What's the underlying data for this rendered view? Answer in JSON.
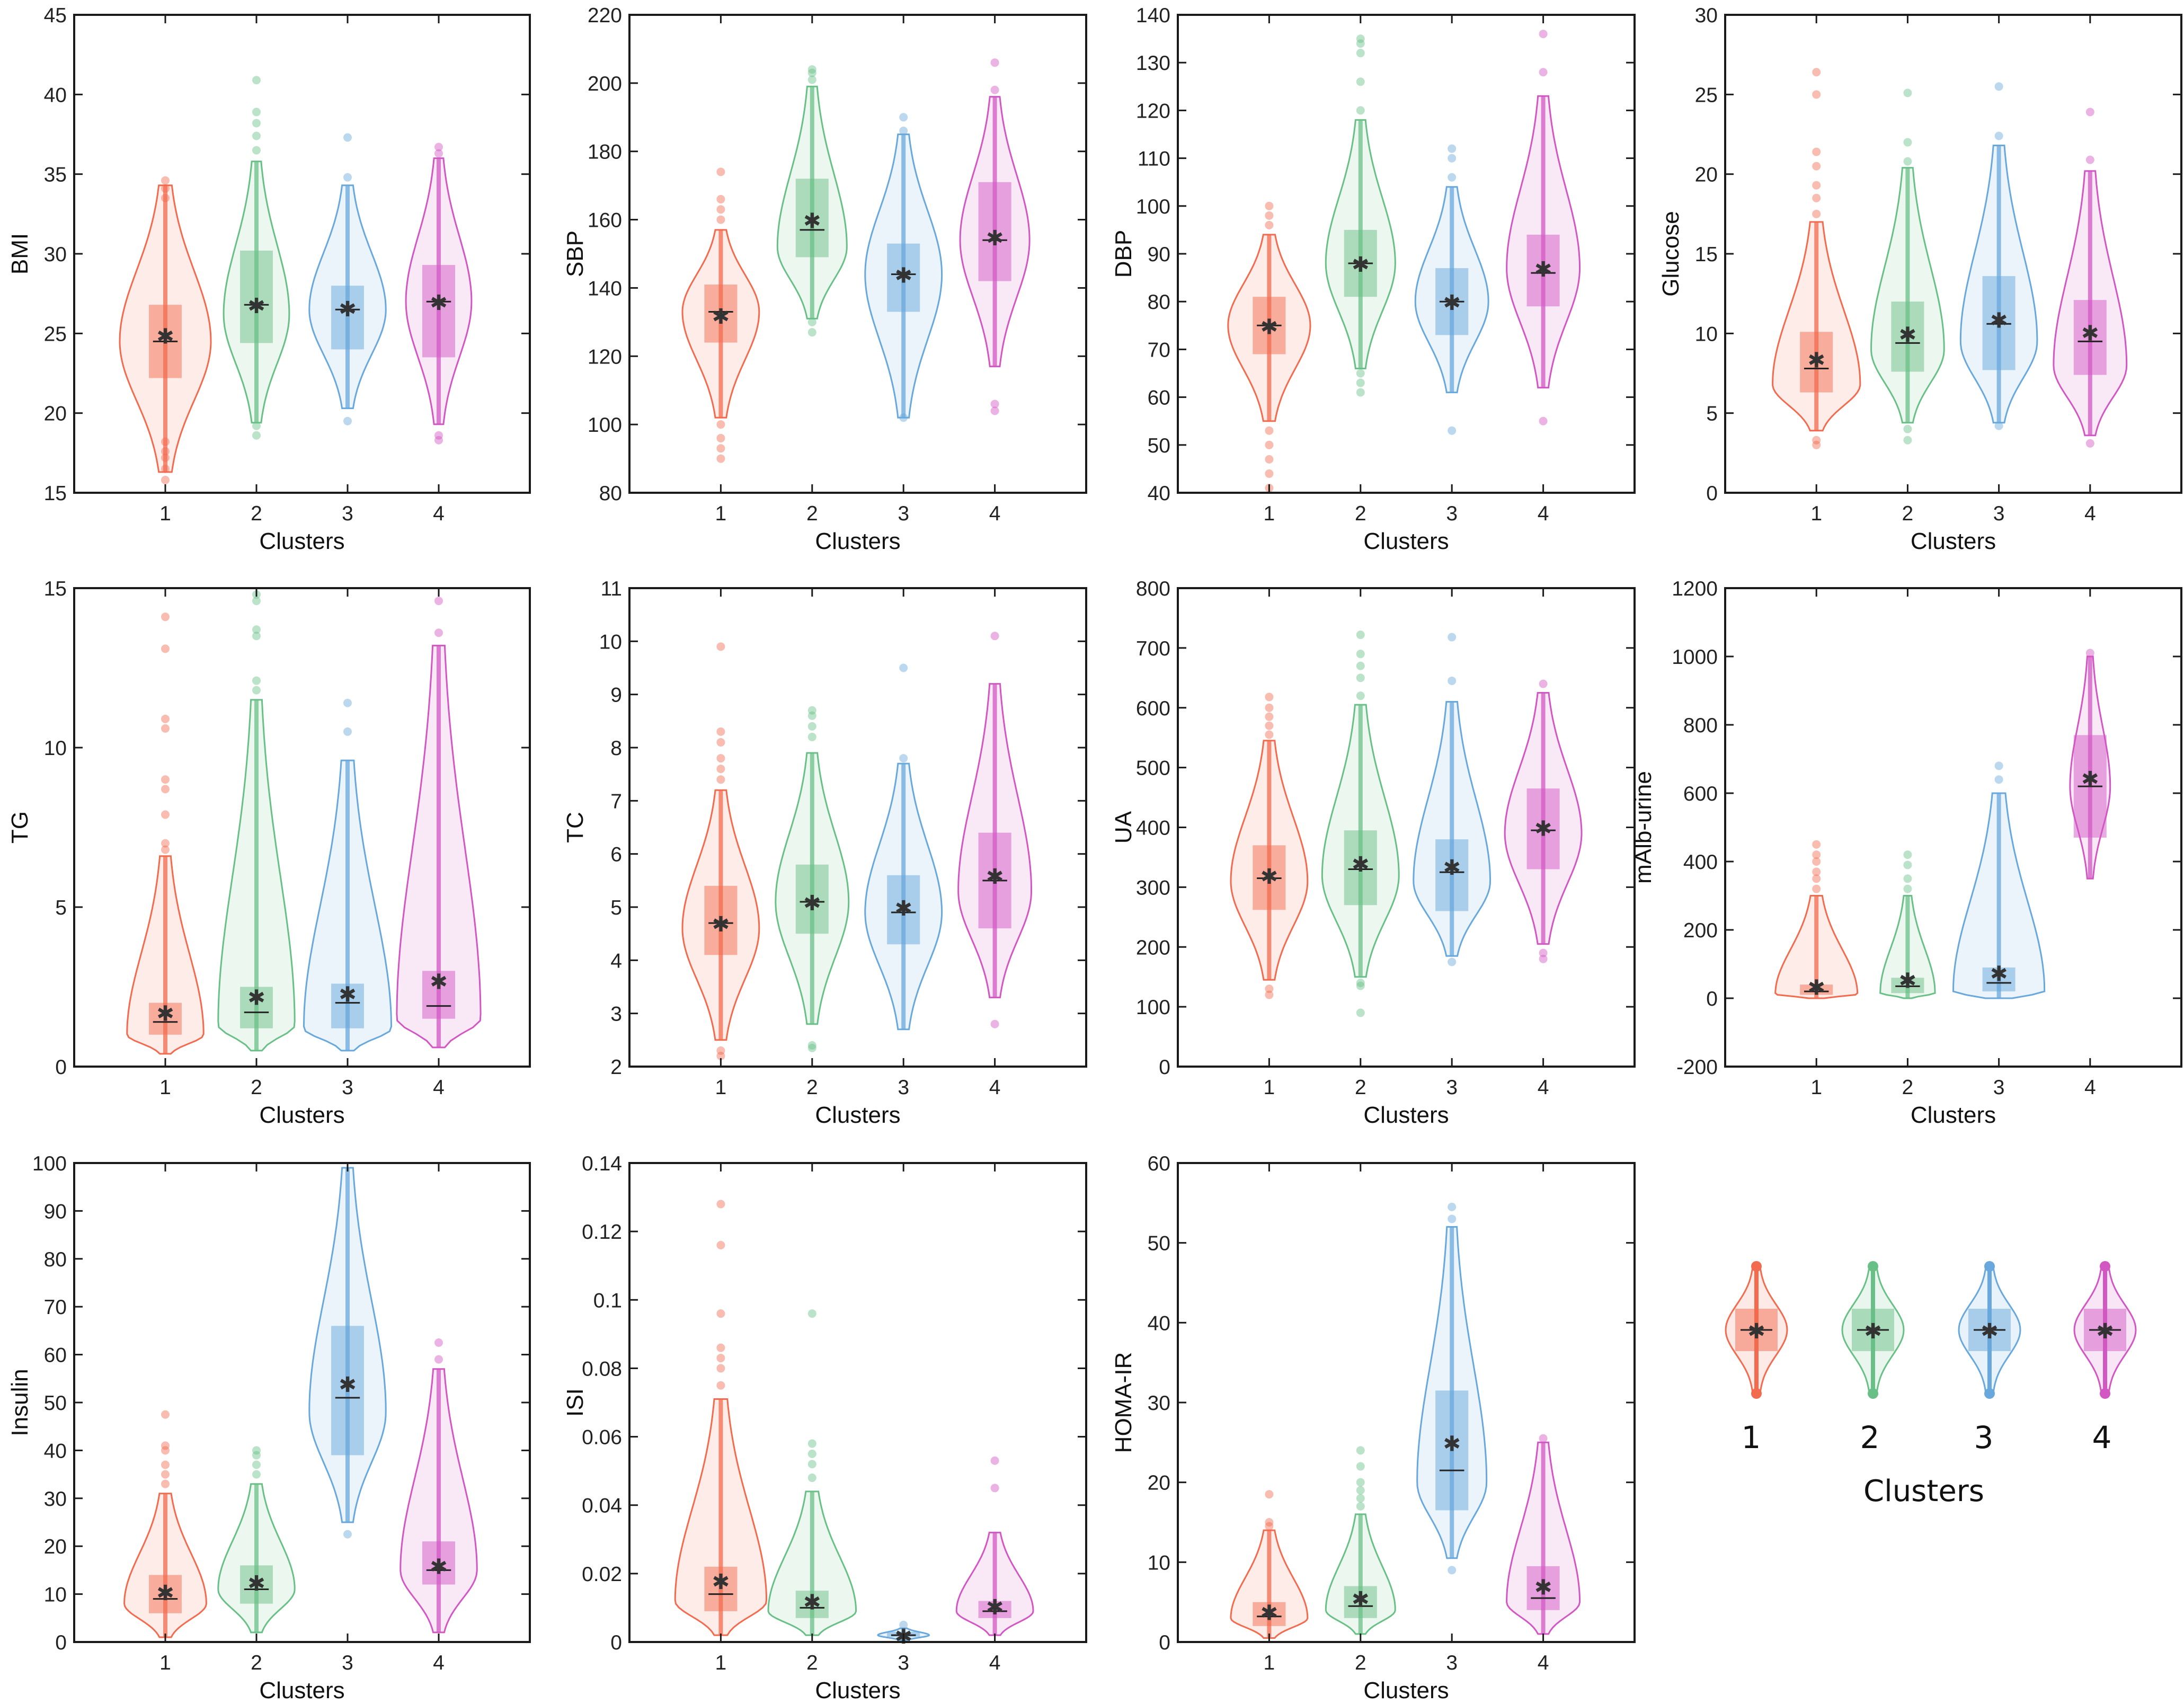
{
  "colors": {
    "1": "#F26B4F",
    "2": "#69C087",
    "3": "#68A8DC",
    "4": "#D257C3"
  },
  "legend": {
    "labels": [
      "1",
      "2",
      "3",
      "4"
    ],
    "title": "Clusters"
  },
  "chart_data": [
    {
      "type": "violin",
      "ylabel": "BMI",
      "xlabel": "Clusters",
      "categories": [
        "1",
        "2",
        "3",
        "4"
      ],
      "ylim": [
        15,
        45
      ],
      "yticks": [
        15,
        20,
        25,
        30,
        35,
        40,
        45
      ],
      "groups": [
        {
          "min": 16.3,
          "q1": 22.2,
          "median": 24.5,
          "q3": 26.8,
          "max": 34.3,
          "mean": 24.9,
          "mode": 24.5,
          "w": 0.5,
          "out": [
            15.8,
            16.5,
            17.2,
            17.6,
            18.2,
            33.5,
            34.1,
            34.6
          ]
        },
        {
          "min": 19.4,
          "q1": 24.4,
          "median": 26.8,
          "q3": 30.2,
          "max": 35.8,
          "mean": 26.8,
          "mode": 26.2,
          "w": 0.36,
          "out": [
            18.6,
            19.2,
            36.5,
            37.4,
            38.2,
            38.9,
            40.9
          ]
        },
        {
          "min": 20.3,
          "q1": 24.0,
          "median": 26.5,
          "q3": 28.0,
          "max": 34.3,
          "mean": 26.6,
          "mode": 26.5,
          "w": 0.42,
          "out": [
            19.5,
            34.8,
            37.3
          ]
        },
        {
          "min": 19.3,
          "q1": 23.5,
          "median": 27.0,
          "q3": 29.3,
          "max": 36.0,
          "mean": 27.0,
          "mode": 27.0,
          "w": 0.36,
          "out": [
            18.3,
            18.6,
            36.3,
            36.7
          ]
        }
      ]
    },
    {
      "type": "violin",
      "ylabel": "SBP",
      "xlabel": "Clusters",
      "categories": [
        "1",
        "2",
        "3",
        "4"
      ],
      "ylim": [
        80,
        220
      ],
      "yticks": [
        80,
        100,
        120,
        140,
        160,
        180,
        200,
        220
      ],
      "groups": [
        {
          "min": 102,
          "q1": 124,
          "median": 133,
          "q3": 141,
          "max": 157,
          "mean": 132,
          "mode": 133,
          "w": 0.42,
          "out": [
            90,
            93,
            96,
            100,
            160,
            163,
            166,
            174
          ]
        },
        {
          "min": 131,
          "q1": 149,
          "median": 157,
          "q3": 172,
          "max": 199,
          "mean": 160,
          "mode": 152,
          "w": 0.38,
          "out": [
            127,
            130,
            201,
            203,
            204
          ]
        },
        {
          "min": 102,
          "q1": 133,
          "median": 144,
          "q3": 153,
          "max": 185,
          "mean": 144,
          "mode": 144,
          "w": 0.42,
          "out": [
            102,
            186,
            190
          ]
        },
        {
          "min": 117,
          "q1": 142,
          "median": 154,
          "q3": 171,
          "max": 196,
          "mean": 155,
          "mode": 154,
          "w": 0.38,
          "out": [
            104,
            106,
            198,
            206
          ]
        }
      ]
    },
    {
      "type": "violin",
      "ylabel": "DBP",
      "xlabel": "Clusters",
      "categories": [
        "1",
        "2",
        "3",
        "4"
      ],
      "ylim": [
        40,
        140
      ],
      "yticks": [
        40,
        50,
        60,
        70,
        80,
        90,
        100,
        110,
        120,
        130,
        140
      ],
      "groups": [
        {
          "min": 55,
          "q1": 69,
          "median": 75,
          "q3": 81,
          "max": 94,
          "mean": 75,
          "mode": 75,
          "w": 0.45,
          "out": [
            41,
            44,
            47,
            50,
            53,
            96,
            98,
            100
          ]
        },
        {
          "min": 66,
          "q1": 81,
          "median": 88,
          "q3": 95,
          "max": 118,
          "mean": 88,
          "mode": 88,
          "w": 0.38,
          "out": [
            61,
            63,
            65,
            120,
            126,
            132,
            134,
            135
          ]
        },
        {
          "min": 61,
          "q1": 73,
          "median": 80,
          "q3": 87,
          "max": 104,
          "mean": 80,
          "mode": 80,
          "w": 0.4,
          "out": [
            53,
            106,
            110,
            112
          ]
        },
        {
          "min": 62,
          "q1": 79,
          "median": 86,
          "q3": 94,
          "max": 123,
          "mean": 87,
          "mode": 87,
          "w": 0.4,
          "out": [
            55,
            128,
            136
          ]
        }
      ]
    },
    {
      "type": "violin",
      "ylabel": "Glucose",
      "xlabel": "Clusters",
      "categories": [
        "1",
        "2",
        "3",
        "4"
      ],
      "ylim": [
        0,
        30
      ],
      "yticks": [
        0,
        5,
        10,
        15,
        20,
        25,
        30
      ],
      "groups": [
        {
          "min": 3.9,
          "q1": 6.3,
          "median": 7.8,
          "q3": 10.1,
          "max": 17.0,
          "mean": 8.4,
          "mode": 6.8,
          "w": 0.48,
          "out": [
            3.0,
            3.3,
            17.5,
            18.5,
            19.3,
            20.5,
            21.4,
            25.0,
            26.4
          ]
        },
        {
          "min": 4.4,
          "q1": 7.6,
          "median": 9.4,
          "q3": 12.0,
          "max": 20.4,
          "mean": 10.0,
          "mode": 9.0,
          "w": 0.4,
          "out": [
            3.3,
            4.0,
            20.8,
            22.0,
            25.1
          ]
        },
        {
          "min": 4.4,
          "q1": 7.7,
          "median": 10.6,
          "q3": 13.6,
          "max": 21.8,
          "mean": 10.9,
          "mode": 9.5,
          "w": 0.42,
          "out": [
            4.2,
            22.4,
            25.5
          ]
        },
        {
          "min": 3.6,
          "q1": 7.4,
          "median": 9.5,
          "q3": 12.1,
          "max": 20.2,
          "mean": 10.1,
          "mode": 8.0,
          "w": 0.4,
          "out": [
            3.1,
            20.9,
            23.9
          ]
        }
      ]
    },
    {
      "type": "violin",
      "ylabel": "TG",
      "xlabel": "Clusters",
      "categories": [
        "1",
        "2",
        "3",
        "4"
      ],
      "ylim": [
        0,
        15
      ],
      "yticks": [
        0,
        5,
        10,
        15
      ],
      "groups": [
        {
          "min": 0.4,
          "q1": 1.0,
          "median": 1.4,
          "q3": 2.0,
          "max": 6.6,
          "mean": 1.7,
          "mode": 1.0,
          "w": 0.42,
          "out": [
            6.8,
            7.0,
            7.9,
            8.7,
            9.0,
            10.6,
            10.9,
            13.1,
            14.1
          ]
        },
        {
          "min": 0.5,
          "q1": 1.2,
          "median": 1.7,
          "q3": 2.5,
          "max": 11.5,
          "mean": 2.2,
          "mode": 1.3,
          "w": 0.42,
          "out": [
            11.8,
            12.1,
            13.5,
            13.7,
            14.6,
            14.8
          ]
        },
        {
          "min": 0.5,
          "q1": 1.2,
          "median": 2.0,
          "q3": 2.6,
          "max": 9.6,
          "mean": 2.3,
          "mode": 1.2,
          "w": 0.48,
          "out": [
            10.5,
            11.4
          ]
        },
        {
          "min": 0.6,
          "q1": 1.5,
          "median": 1.9,
          "q3": 3.0,
          "max": 13.2,
          "mean": 2.7,
          "mode": 1.5,
          "w": 0.46,
          "out": [
            13.6,
            14.6
          ]
        }
      ]
    },
    {
      "type": "violin",
      "ylabel": "TC",
      "xlabel": "Clusters",
      "categories": [
        "1",
        "2",
        "3",
        "4"
      ],
      "ylim": [
        2,
        11
      ],
      "yticks": [
        2,
        3,
        4,
        5,
        6,
        7,
        8,
        9,
        10,
        11
      ],
      "groups": [
        {
          "min": 2.5,
          "q1": 4.1,
          "median": 4.7,
          "q3": 5.4,
          "max": 7.2,
          "mean": 4.7,
          "mode": 4.6,
          "w": 0.42,
          "out": [
            2.2,
            2.3,
            7.4,
            7.6,
            7.8,
            8.1,
            8.3,
            9.9
          ]
        },
        {
          "min": 2.8,
          "q1": 4.5,
          "median": 5.1,
          "q3": 5.8,
          "max": 7.9,
          "mean": 5.1,
          "mode": 5.1,
          "w": 0.4,
          "out": [
            2.35,
            2.4,
            8.2,
            8.4,
            8.6,
            8.7
          ]
        },
        {
          "min": 2.7,
          "q1": 4.3,
          "median": 4.9,
          "q3": 5.6,
          "max": 7.7,
          "mean": 5.0,
          "mode": 4.9,
          "w": 0.42,
          "out": [
            7.8,
            9.5
          ]
        },
        {
          "min": 3.3,
          "q1": 4.6,
          "median": 5.5,
          "q3": 6.4,
          "max": 9.2,
          "mean": 5.6,
          "mode": 5.3,
          "w": 0.4,
          "out": [
            2.8,
            10.1
          ]
        }
      ]
    },
    {
      "type": "violin",
      "ylabel": "UA",
      "xlabel": "Clusters",
      "categories": [
        "1",
        "2",
        "3",
        "4"
      ],
      "ylim": [
        0,
        800
      ],
      "yticks": [
        0,
        100,
        200,
        300,
        400,
        500,
        600,
        700,
        800
      ],
      "groups": [
        {
          "min": 145,
          "q1": 262,
          "median": 315,
          "q3": 370,
          "max": 545,
          "mean": 320,
          "mode": 310,
          "w": 0.42,
          "out": [
            120,
            130,
            555,
            570,
            585,
            600,
            618
          ]
        },
        {
          "min": 150,
          "q1": 270,
          "median": 330,
          "q3": 395,
          "max": 605,
          "mean": 340,
          "mode": 320,
          "w": 0.42,
          "out": [
            90,
            135,
            140,
            620,
            650,
            670,
            690,
            722
          ]
        },
        {
          "min": 185,
          "q1": 260,
          "median": 325,
          "q3": 380,
          "max": 610,
          "mean": 335,
          "mode": 310,
          "w": 0.42,
          "out": [
            175,
            645,
            718
          ]
        },
        {
          "min": 205,
          "q1": 330,
          "median": 395,
          "q3": 465,
          "max": 625,
          "mean": 400,
          "mode": 390,
          "w": 0.42,
          "out": [
            180,
            190,
            640
          ]
        }
      ]
    },
    {
      "type": "violin",
      "ylabel": "mAlb-urine",
      "xlabel": "Clusters",
      "categories": [
        "1",
        "2",
        "3",
        "4"
      ],
      "ylim": [
        -200,
        1200
      ],
      "yticks": [
        -200,
        0,
        200,
        400,
        600,
        800,
        1000,
        1200
      ],
      "groups": [
        {
          "min": 0,
          "q1": 10,
          "median": 20,
          "q3": 40,
          "max": 300,
          "mean": 35,
          "mode": 12,
          "w": 0.45,
          "out": [
            320,
            350,
            370,
            400,
            420,
            450
          ]
        },
        {
          "min": 0,
          "q1": 15,
          "median": 35,
          "q3": 60,
          "max": 300,
          "mean": 55,
          "mode": 15,
          "w": 0.3,
          "out": [
            320,
            350,
            390,
            420
          ]
        },
        {
          "min": 0,
          "q1": 20,
          "median": 45,
          "q3": 90,
          "max": 600,
          "mean": 75,
          "mode": 20,
          "w": 0.5,
          "out": [
            640,
            680
          ]
        },
        {
          "min": 350,
          "q1": 470,
          "median": 620,
          "q3": 770,
          "max": 1000,
          "mean": 645,
          "mode": 620,
          "w": 0.22,
          "out": [
            1010
          ]
        }
      ]
    },
    {
      "type": "violin",
      "ylabel": "Insulin",
      "xlabel": "Clusters",
      "categories": [
        "1",
        "2",
        "3",
        "4"
      ],
      "ylim": [
        0,
        100
      ],
      "yticks": [
        0,
        10,
        20,
        30,
        40,
        50,
        60,
        70,
        80,
        90,
        100
      ],
      "groups": [
        {
          "min": 1,
          "q1": 6,
          "median": 9,
          "q3": 14,
          "max": 31,
          "mean": 10.5,
          "mode": 8,
          "w": 0.45,
          "out": [
            33,
            35,
            37,
            40,
            41,
            47.5
          ]
        },
        {
          "min": 2,
          "q1": 8,
          "median": 11,
          "q3": 16,
          "max": 33,
          "mean": 12.5,
          "mode": 11,
          "w": 0.42,
          "out": [
            35,
            37,
            39,
            40
          ]
        },
        {
          "min": 25,
          "q1": 39,
          "median": 51,
          "q3": 66,
          "max": 99,
          "mean": 54,
          "mode": 48,
          "w": 0.42,
          "out": [
            22.5
          ]
        },
        {
          "min": 2,
          "q1": 12,
          "median": 15,
          "q3": 21,
          "max": 57,
          "mean": 16,
          "mode": 15,
          "w": 0.42,
          "out": [
            59,
            62.5
          ]
        }
      ]
    },
    {
      "type": "violin",
      "ylabel": "ISI",
      "xlabel": "Clusters",
      "categories": [
        "1",
        "2",
        "3",
        "4"
      ],
      "ylim": [
        0,
        0.14
      ],
      "yticks": [
        0,
        0.02,
        0.04,
        0.06,
        0.08,
        0.1,
        0.12,
        0.14
      ],
      "groups": [
        {
          "min": 0.002,
          "q1": 0.009,
          "median": 0.014,
          "q3": 0.022,
          "max": 0.071,
          "mean": 0.018,
          "mode": 0.012,
          "w": 0.5,
          "out": [
            0.075,
            0.08,
            0.083,
            0.086,
            0.096,
            0.116,
            0.128
          ]
        },
        {
          "min": 0.002,
          "q1": 0.007,
          "median": 0.01,
          "q3": 0.015,
          "max": 0.044,
          "mean": 0.012,
          "mode": 0.009,
          "w": 0.48,
          "out": [
            0.048,
            0.052,
            0.055,
            0.058,
            0.096
          ]
        },
        {
          "min": 0.0005,
          "q1": 0.0015,
          "median": 0.002,
          "q3": 0.003,
          "max": 0.004,
          "mean": 0.002,
          "mode": 0.002,
          "w": 0.28,
          "out": [
            0.005
          ]
        },
        {
          "min": 0.002,
          "q1": 0.007,
          "median": 0.009,
          "q3": 0.012,
          "max": 0.032,
          "mean": 0.0105,
          "mode": 0.009,
          "w": 0.42,
          "out": [
            0.045,
            0.053
          ]
        }
      ]
    },
    {
      "type": "violin",
      "ylabel": "HOMA-IR",
      "xlabel": "Clusters",
      "categories": [
        "1",
        "2",
        "3",
        "4"
      ],
      "ylim": [
        0,
        60
      ],
      "yticks": [
        0,
        10,
        20,
        30,
        40,
        50,
        60
      ],
      "groups": [
        {
          "min": 0.5,
          "q1": 2,
          "median": 3.2,
          "q3": 5,
          "max": 14,
          "mean": 3.8,
          "mode": 3,
          "w": 0.42,
          "out": [
            14.5,
            15,
            18.5
          ]
        },
        {
          "min": 1,
          "q1": 3,
          "median": 4.5,
          "q3": 7,
          "max": 16,
          "mean": 5.5,
          "mode": 4,
          "w": 0.38,
          "out": [
            17,
            18,
            19,
            20,
            22,
            24
          ]
        },
        {
          "min": 10.5,
          "q1": 16.5,
          "median": 21.5,
          "q3": 31.5,
          "max": 52,
          "mean": 25,
          "mode": 20,
          "w": 0.38,
          "out": [
            9,
            53,
            54.5
          ]
        },
        {
          "min": 1,
          "q1": 4,
          "median": 5.5,
          "q3": 9.5,
          "max": 25,
          "mean": 7,
          "mode": 5,
          "w": 0.4,
          "out": [
            25.5
          ]
        }
      ]
    }
  ]
}
